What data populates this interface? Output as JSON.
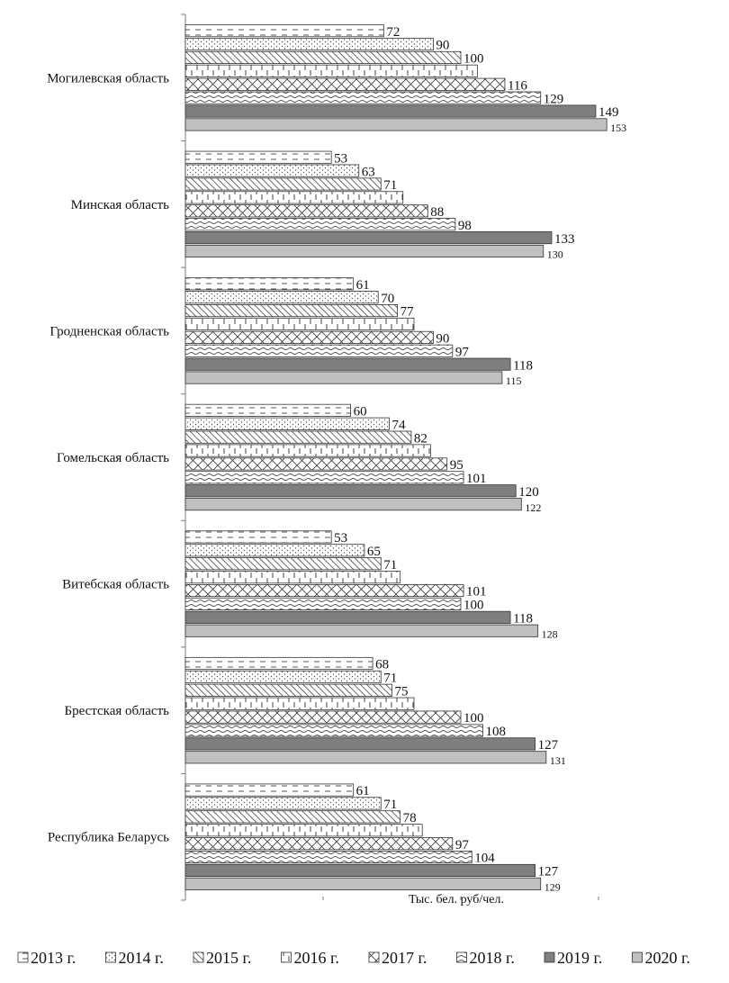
{
  "chart_data": {
    "type": "bar",
    "orientation": "horizontal",
    "title": "",
    "xlabel": "Тыс. бел. руб/чел.",
    "ylabel": "",
    "xlim": [
      0,
      200
    ],
    "grid": false,
    "legend_position": "bottom",
    "categories": [
      "Могилевская область",
      "Минская область",
      "Гродненская область",
      "Гомельская область",
      "Витебская область",
      "Брестская область",
      "Республика Беларусь"
    ],
    "series": [
      {
        "name": "2013 г.",
        "values": [
          72,
          53,
          61,
          60,
          53,
          68,
          61
        ],
        "pattern": "dashes",
        "color": "#ffffff"
      },
      {
        "name": "2014 г.",
        "values": [
          90,
          63,
          70,
          74,
          65,
          71,
          71
        ],
        "pattern": "dots",
        "color": "#ffffff"
      },
      {
        "name": "2015 г.",
        "values": [
          100,
          71,
          77,
          82,
          71,
          75,
          78
        ],
        "pattern": "diagonal",
        "color": "#ffffff"
      },
      {
        "name": "2016 г.",
        "values": [
          106,
          79,
          83,
          89,
          78,
          83,
          86
        ],
        "pattern": "bricks",
        "color": "#ffffff"
      },
      {
        "name": "2017 г.",
        "values": [
          116,
          88,
          90,
          95,
          101,
          100,
          97
        ],
        "pattern": "crosshatch",
        "color": "#ffffff"
      },
      {
        "name": "2018 г.",
        "values": [
          129,
          98,
          97,
          101,
          100,
          108,
          104
        ],
        "pattern": "waves",
        "color": "#ffffff"
      },
      {
        "name": "2019 г.",
        "values": [
          149,
          133,
          118,
          120,
          118,
          127,
          127
        ],
        "pattern": "solid",
        "color": "#7f7f7f"
      },
      {
        "name": "2020 г.",
        "values": [
          153,
          130,
          115,
          122,
          128,
          131,
          129
        ],
        "pattern": "solid",
        "color": "#c0c0c0"
      }
    ],
    "data_labels": [
      [
        "72",
        "90",
        "100",
        "",
        "116",
        "129",
        "149",
        "153"
      ],
      [
        "53",
        "63",
        "71",
        "",
        "88",
        "98",
        "133",
        "130"
      ],
      [
        "61",
        "70",
        "77",
        "",
        "90",
        "97",
        "118",
        "115"
      ],
      [
        "60",
        "74",
        "82",
        "",
        "95",
        "101",
        "120",
        "122"
      ],
      [
        "53",
        "65",
        "71",
        "",
        "101",
        "100",
        "118",
        "128"
      ],
      [
        "68",
        "71",
        "75",
        "",
        "100",
        "108",
        "127",
        "131"
      ],
      [
        "61",
        "71",
        "78",
        "",
        "97",
        "104",
        "127",
        "129"
      ]
    ]
  }
}
